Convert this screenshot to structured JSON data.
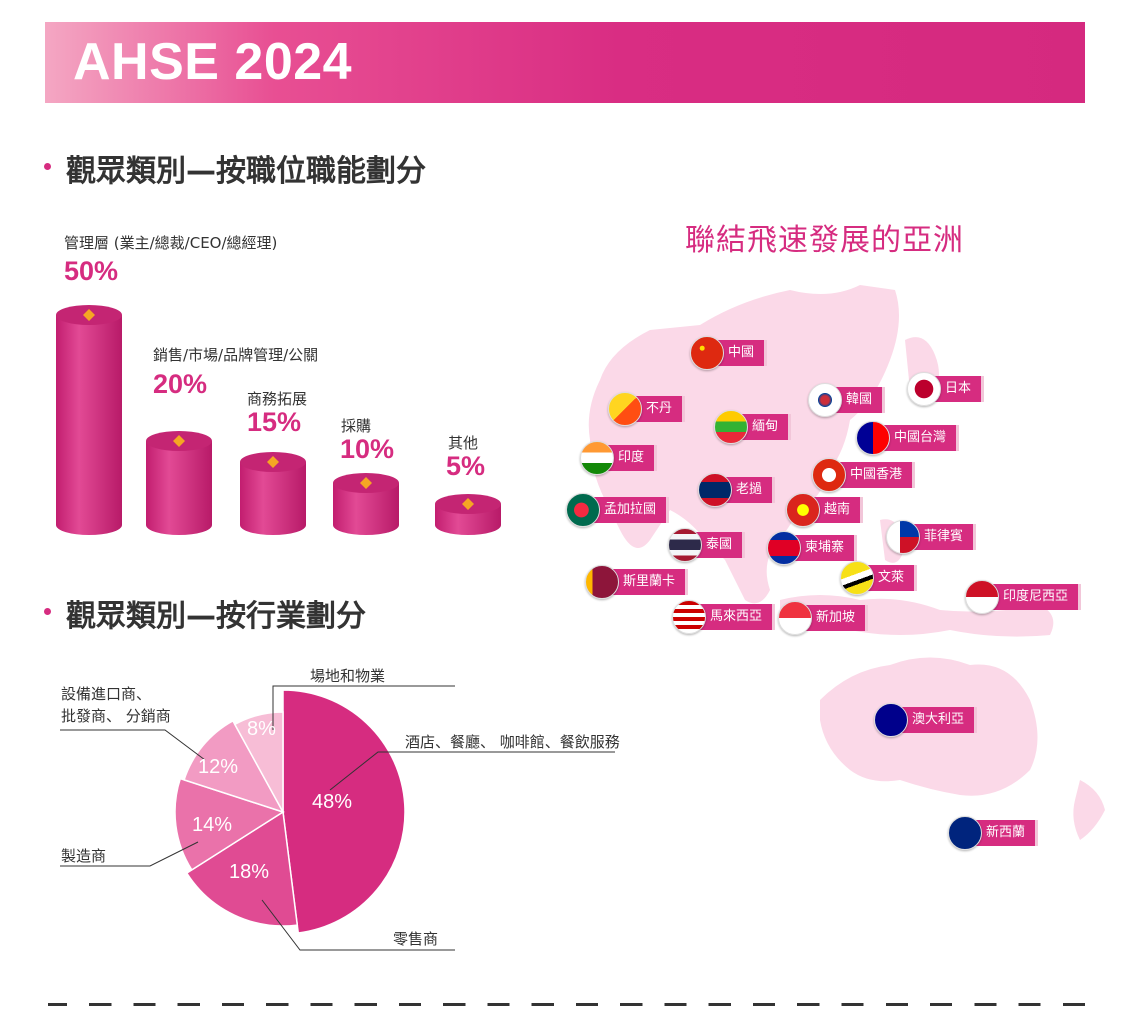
{
  "banner": {
    "title": "AHSE 2024"
  },
  "section1": {
    "title": "觀眾類別—按職位職能劃分"
  },
  "section2": {
    "title": "觀眾類別—按行業劃分"
  },
  "map": {
    "title": "聯結飛速發展的亞洲",
    "countries": [
      {
        "label": "中國",
        "flag": "china"
      },
      {
        "label": "日本",
        "flag": "japan"
      },
      {
        "label": "韓國",
        "flag": "korea"
      },
      {
        "label": "不丹",
        "flag": "bhutan"
      },
      {
        "label": "緬甸",
        "flag": "myanmar"
      },
      {
        "label": "中國台灣",
        "flag": "taiwan"
      },
      {
        "label": "印度",
        "flag": "india"
      },
      {
        "label": "中國香港",
        "flag": "hongkong"
      },
      {
        "label": "老撾",
        "flag": "laos"
      },
      {
        "label": "孟加拉國",
        "flag": "bangladesh"
      },
      {
        "label": "越南",
        "flag": "vietnam"
      },
      {
        "label": "菲律賓",
        "flag": "philippines"
      },
      {
        "label": "泰國",
        "flag": "thailand"
      },
      {
        "label": "柬埔寨",
        "flag": "cambodia"
      },
      {
        "label": "斯里蘭卡",
        "flag": "srilanka"
      },
      {
        "label": "文萊",
        "flag": "brunei"
      },
      {
        "label": "印度尼西亞",
        "flag": "indonesia"
      },
      {
        "label": "馬來西亞",
        "flag": "malaysia"
      },
      {
        "label": "新加坡",
        "flag": "singapore"
      },
      {
        "label": "澳大利亞",
        "flag": "australia"
      },
      {
        "label": "新西蘭",
        "flag": "newzealand"
      }
    ]
  },
  "chart_data": [
    {
      "type": "bar",
      "title": "觀眾類別—按職位職能劃分",
      "categories": [
        "管理層 (業主/總裁/CEO/總經理)",
        "銷售/市場/品牌管理/公關",
        "商務拓展",
        "採購",
        "其他"
      ],
      "values": [
        50,
        20,
        15,
        10,
        5
      ],
      "value_labels": [
        "50%",
        "20%",
        "15%",
        "10%",
        "5%"
      ],
      "unit": "%",
      "colors": {
        "bar": "#d62c80",
        "marker": "#f5a623"
      }
    },
    {
      "type": "pie",
      "title": "觀眾類別—按行業劃分",
      "categories": [
        "酒店、餐廳、 咖啡館、餐飲服務",
        "零售商",
        "製造商",
        "設備進口商、\n批發商、 分銷商",
        "場地和物業"
      ],
      "values": [
        48,
        18,
        14,
        12,
        8
      ],
      "value_labels": [
        "48%",
        "18%",
        "14%",
        "12%",
        "8%"
      ],
      "colors": [
        "#d62c80",
        "#e04b93",
        "#ea72aa",
        "#f29bc3",
        "#f7bdd6"
      ]
    }
  ]
}
